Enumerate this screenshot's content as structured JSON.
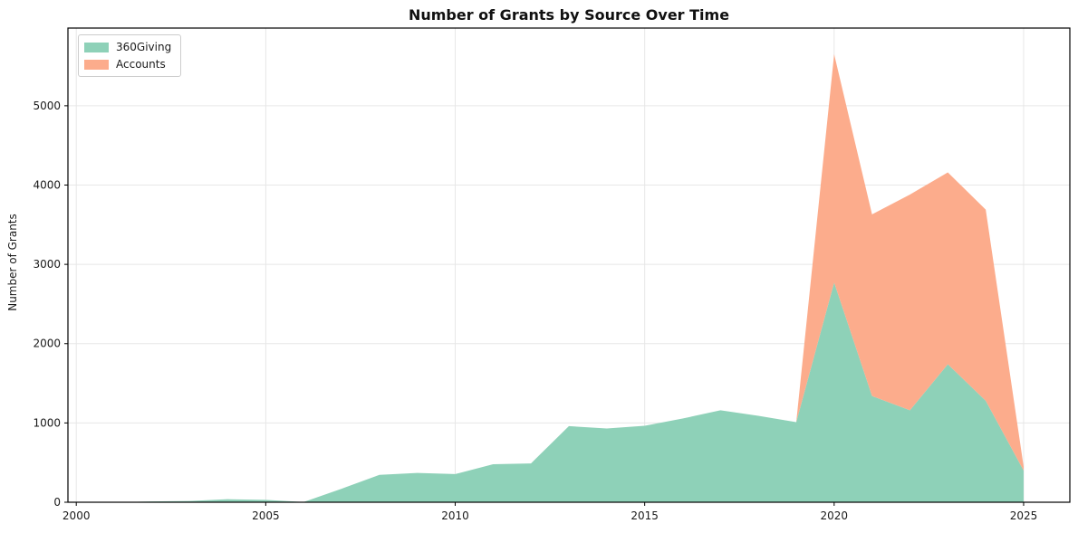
{
  "title": "Number of Grants by Source Over Time",
  "ylabel": "Number of Grants",
  "legend": {
    "items": [
      {
        "label": "360Giving",
        "color": "#8ed1b8"
      },
      {
        "label": "Accounts",
        "color": "#fcac8c"
      }
    ]
  },
  "chart_data": {
    "type": "area",
    "stacked": true,
    "title": "Number of Grants by Source Over Time",
    "xlabel": "",
    "ylabel": "Number of Grants",
    "x": [
      2000,
      2001,
      2002,
      2003,
      2004,
      2005,
      2006,
      2007,
      2008,
      2009,
      2010,
      2011,
      2012,
      2013,
      2014,
      2015,
      2016,
      2017,
      2018,
      2019,
      2020,
      2021,
      2022,
      2023,
      2024,
      2025
    ],
    "series": [
      {
        "name": "360Giving",
        "color": "#8ed1b8",
        "values": [
          0,
          0,
          10,
          15,
          38,
          30,
          3,
          170,
          345,
          370,
          355,
          480,
          490,
          960,
          930,
          965,
          1055,
          1160,
          1090,
          1010,
          2770,
          1340,
          1160,
          1740,
          1280,
          400
        ]
      },
      {
        "name": "Accounts",
        "color": "#fcac8c",
        "values": [
          0,
          0,
          0,
          0,
          0,
          0,
          0,
          0,
          0,
          0,
          0,
          0,
          0,
          0,
          0,
          0,
          0,
          0,
          0,
          0,
          2880,
          2290,
          2720,
          2420,
          2410,
          50
        ]
      }
    ],
    "xticks": [
      2000,
      2005,
      2010,
      2015,
      2020,
      2025
    ],
    "yticks": [
      0,
      1000,
      2000,
      3000,
      4000,
      5000
    ],
    "xlim": [
      1999.78,
      2026.22
    ],
    "ylim": [
      0,
      5980
    ],
    "grid": true,
    "grid_color": "#e7e7e7",
    "spine_color": "#000000",
    "legend_position": "upper left"
  }
}
